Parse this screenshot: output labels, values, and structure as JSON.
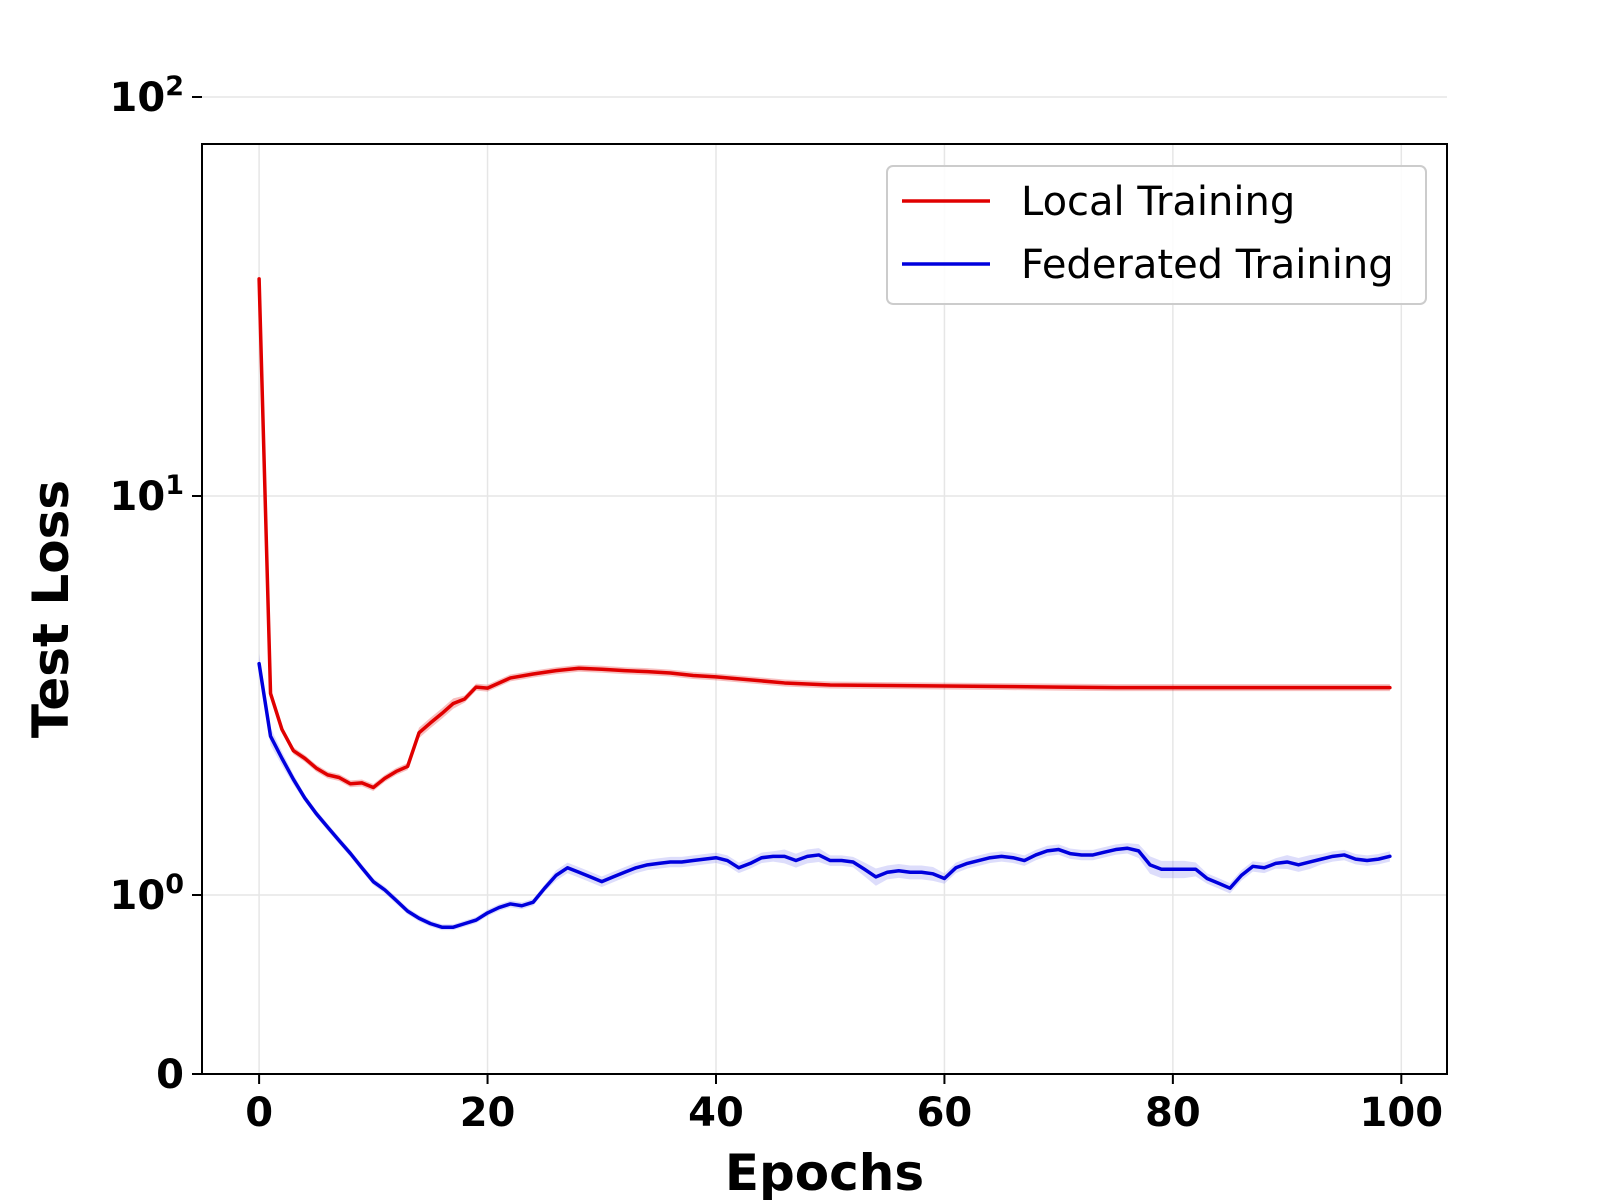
{
  "chart_data": {
    "type": "line",
    "title": "",
    "xlabel": "Epochs",
    "ylabel": "Test Loss",
    "xlim": [
      -5,
      104
    ],
    "ylim": [
      0,
      100
    ],
    "yscale": "symlog",
    "grid": true,
    "legend_position": "top-right",
    "x_ticks": [
      {
        "value": 0,
        "label": "0"
      },
      {
        "value": 20,
        "label": "20"
      },
      {
        "value": 40,
        "label": "40"
      },
      {
        "value": 60,
        "label": "60"
      },
      {
        "value": 80,
        "label": "80"
      },
      {
        "value": 100,
        "label": "100"
      }
    ],
    "y_ticks": [
      {
        "value": 0,
        "base": "0",
        "exp": ""
      },
      {
        "value": 1,
        "base": "10",
        "exp": "0"
      },
      {
        "value": 10,
        "base": "10",
        "exp": "1"
      },
      {
        "value": 100,
        "base": "10",
        "exp": "2"
      }
    ],
    "series": [
      {
        "name": "Local Training",
        "color": "#e00000",
        "band_color": "#e00000",
        "x": [
          0,
          1,
          2,
          3,
          4,
          5,
          6,
          7,
          8,
          9,
          10,
          11,
          12,
          13,
          14,
          15,
          16,
          17,
          18,
          19,
          20,
          22,
          24,
          26,
          28,
          30,
          32,
          34,
          36,
          38,
          40,
          42,
          44,
          46,
          48,
          50,
          55,
          60,
          65,
          70,
          75,
          80,
          85,
          90,
          95,
          99
        ],
        "values": [
          35,
          3.2,
          2.6,
          2.3,
          2.2,
          2.08,
          2.0,
          1.97,
          1.9,
          1.91,
          1.86,
          1.96,
          2.04,
          2.1,
          2.55,
          2.7,
          2.85,
          3.02,
          3.1,
          3.32,
          3.3,
          3.5,
          3.58,
          3.65,
          3.7,
          3.68,
          3.65,
          3.63,
          3.6,
          3.55,
          3.52,
          3.48,
          3.44,
          3.4,
          3.38,
          3.36,
          3.35,
          3.34,
          3.33,
          3.32,
          3.31,
          3.31,
          3.31,
          3.31,
          3.31,
          3.31
        ],
        "band": [
          0.02,
          0.02,
          0.02,
          0.02,
          0.02,
          0.02,
          0.02,
          0.02,
          0.02,
          0.02,
          0.02,
          0.02,
          0.02,
          0.02,
          0.03,
          0.03,
          0.03,
          0.03,
          0.02,
          0.02,
          0.02,
          0.02,
          0.02,
          0.02,
          0.02,
          0.02,
          0.02,
          0.02,
          0.02,
          0.02,
          0.02,
          0.02,
          0.02,
          0.02,
          0.02,
          0.02,
          0.02,
          0.02,
          0.02,
          0.02,
          0.02,
          0.02,
          0.02,
          0.02,
          0.02,
          0.02
        ]
      },
      {
        "name": "Federated Training",
        "color": "#0000dd",
        "band_color": "#7777ee",
        "x": [
          0,
          1,
          2,
          3,
          4,
          5,
          6,
          7,
          8,
          9,
          10,
          11,
          12,
          13,
          14,
          15,
          16,
          17,
          18,
          19,
          20,
          21,
          22,
          23,
          24,
          25,
          26,
          27,
          28,
          29,
          30,
          31,
          32,
          33,
          34,
          35,
          36,
          37,
          38,
          39,
          40,
          41,
          42,
          43,
          44,
          45,
          46,
          47,
          48,
          49,
          50,
          51,
          52,
          53,
          54,
          55,
          56,
          57,
          58,
          59,
          60,
          61,
          62,
          63,
          64,
          65,
          66,
          67,
          68,
          69,
          70,
          71,
          72,
          73,
          74,
          75,
          76,
          77,
          78,
          79,
          80,
          81,
          82,
          83,
          84,
          85,
          86,
          87,
          88,
          89,
          90,
          91,
          92,
          93,
          94,
          95,
          96,
          97,
          98,
          99
        ],
        "values": [
          3.8,
          2.5,
          2.2,
          1.95,
          1.75,
          1.6,
          1.48,
          1.37,
          1.27,
          1.17,
          1.08,
          1.03,
          0.97,
          0.91,
          0.87,
          0.84,
          0.82,
          0.82,
          0.84,
          0.86,
          0.9,
          0.93,
          0.95,
          0.94,
          0.96,
          1.04,
          1.12,
          1.17,
          1.14,
          1.11,
          1.08,
          1.11,
          1.14,
          1.17,
          1.19,
          1.2,
          1.21,
          1.21,
          1.22,
          1.23,
          1.24,
          1.22,
          1.17,
          1.2,
          1.24,
          1.25,
          1.25,
          1.22,
          1.25,
          1.26,
          1.22,
          1.22,
          1.21,
          1.16,
          1.11,
          1.14,
          1.15,
          1.14,
          1.14,
          1.13,
          1.1,
          1.17,
          1.2,
          1.22,
          1.24,
          1.25,
          1.24,
          1.22,
          1.26,
          1.29,
          1.3,
          1.27,
          1.26,
          1.26,
          1.28,
          1.3,
          1.31,
          1.29,
          1.19,
          1.16,
          1.16,
          1.16,
          1.16,
          1.1,
          1.07,
          1.04,
          1.12,
          1.18,
          1.17,
          1.2,
          1.21,
          1.19,
          1.21,
          1.23,
          1.25,
          1.26,
          1.23,
          1.22,
          1.23,
          1.25
        ],
        "band": [
          0.06,
          0.05,
          0.04,
          0.03,
          0.02,
          0.02,
          0.02,
          0.02,
          0.02,
          0.02,
          0.02,
          0.02,
          0.02,
          0.02,
          0.02,
          0.02,
          0.02,
          0.02,
          0.02,
          0.02,
          0.02,
          0.02,
          0.02,
          0.02,
          0.02,
          0.02,
          0.03,
          0.03,
          0.03,
          0.03,
          0.03,
          0.03,
          0.03,
          0.03,
          0.03,
          0.03,
          0.03,
          0.03,
          0.03,
          0.03,
          0.03,
          0.03,
          0.03,
          0.03,
          0.03,
          0.03,
          0.04,
          0.04,
          0.04,
          0.04,
          0.03,
          0.03,
          0.03,
          0.04,
          0.05,
          0.04,
          0.04,
          0.04,
          0.04,
          0.04,
          0.03,
          0.03,
          0.03,
          0.03,
          0.03,
          0.03,
          0.03,
          0.03,
          0.03,
          0.03,
          0.03,
          0.03,
          0.03,
          0.03,
          0.03,
          0.03,
          0.03,
          0.04,
          0.05,
          0.05,
          0.05,
          0.05,
          0.04,
          0.03,
          0.03,
          0.03,
          0.03,
          0.03,
          0.03,
          0.03,
          0.04,
          0.04,
          0.04,
          0.03,
          0.03,
          0.03,
          0.03,
          0.03,
          0.03,
          0.03
        ]
      }
    ]
  }
}
